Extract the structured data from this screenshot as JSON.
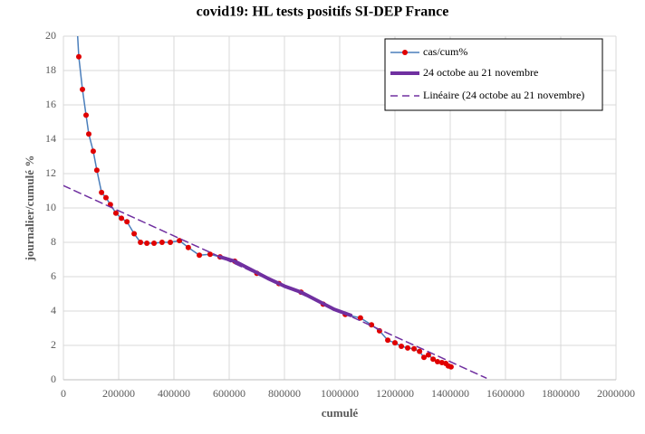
{
  "chart_data": {
    "type": "line",
    "title": "covid19: HL tests positifs SI-DEP France",
    "xlabel": "cumulé",
    "ylabel": "journalier/cumulé %",
    "xlim": [
      0,
      2000000
    ],
    "xticks": [
      0,
      200000,
      400000,
      600000,
      800000,
      1000000,
      1200000,
      1400000,
      1600000,
      1800000,
      2000000
    ],
    "ylim": [
      0,
      20
    ],
    "yticks": [
      0,
      2,
      4,
      6,
      8,
      10,
      12,
      14,
      16,
      18,
      20
    ],
    "grid": true,
    "legend": "top-right",
    "series": [
      {
        "name": "cas/cum%",
        "color": "#4a7ebb",
        "marker_color": "#e00000",
        "marker": true,
        "line_width": 1.5,
        "x": [
          48000,
          55700,
          68900,
          82000,
          91800,
          108000,
          121000,
          138000,
          154000,
          170000,
          190000,
          210000,
          230000,
          256000,
          279000,
          302000,
          328000,
          357000,
          387000,
          420000,
          452000,
          492000,
          531000,
          567000,
          620000,
          700000,
          780000,
          860000,
          940000,
          1020000,
          1075000,
          1115000,
          1144000,
          1174000,
          1200000,
          1223000,
          1246000,
          1269000,
          1289000,
          1305000,
          1321000,
          1338000,
          1354000,
          1370000,
          1384000,
          1393000,
          1403000
        ],
        "values": [
          21,
          18.8,
          16.9,
          15.4,
          14.3,
          13.3,
          12.2,
          10.9,
          10.6,
          10.2,
          9.7,
          9.4,
          9.2,
          8.5,
          8.0,
          7.95,
          7.95,
          8.0,
          8.0,
          8.1,
          7.7,
          7.25,
          7.3,
          7.15,
          6.9,
          6.2,
          5.6,
          5.1,
          4.4,
          3.8,
          3.6,
          3.2,
          2.85,
          2.3,
          2.15,
          1.95,
          1.85,
          1.8,
          1.65,
          1.3,
          1.45,
          1.2,
          1.05,
          1.0,
          0.95,
          0.8,
          0.75
        ]
      },
      {
        "name": "24 octobe au 21 novembre",
        "color": "#7030a0",
        "marker": false,
        "line_width": 4,
        "x": [
          567000,
          620000,
          680000,
          740000,
          800000,
          860000,
          920000,
          980000,
          1040000
        ],
        "values": [
          7.15,
          6.9,
          6.4,
          5.9,
          5.45,
          5.1,
          4.6,
          4.1,
          3.75
        ]
      },
      {
        "name": "Linéaire (24 octobe au 21 novembre)",
        "color": "#7030a0",
        "marker": false,
        "line_width": 1.5,
        "dash": true,
        "x": [
          0,
          1530000
        ],
        "values": [
          11.3,
          0.1
        ]
      }
    ]
  }
}
